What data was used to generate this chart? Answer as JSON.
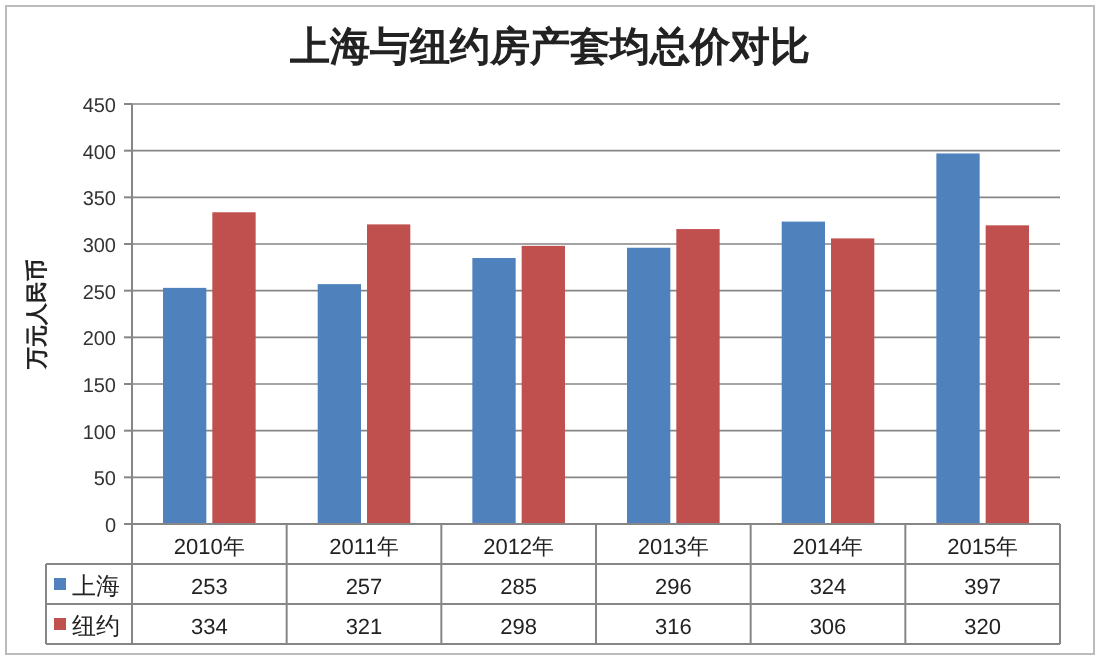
{
  "chart_data": {
    "type": "bar",
    "title": "上海与纽约房产套均总价对比",
    "ylabel": "万元人民币",
    "categories": [
      "2010年",
      "2011年",
      "2012年",
      "2013年",
      "2014年",
      "2015年"
    ],
    "series": [
      {
        "name": "上海",
        "color": "#4f81bd",
        "values": [
          253,
          257,
          285,
          296,
          324,
          397
        ]
      },
      {
        "name": "纽约",
        "color": "#c0504d",
        "values": [
          334,
          321,
          298,
          316,
          306,
          320
        ]
      }
    ],
    "ylim": [
      0,
      450
    ],
    "yticks": [
      0,
      50,
      100,
      150,
      200,
      250,
      300,
      350,
      400,
      450
    ],
    "grid": "y",
    "legend": "bottom",
    "data_labels": true
  }
}
